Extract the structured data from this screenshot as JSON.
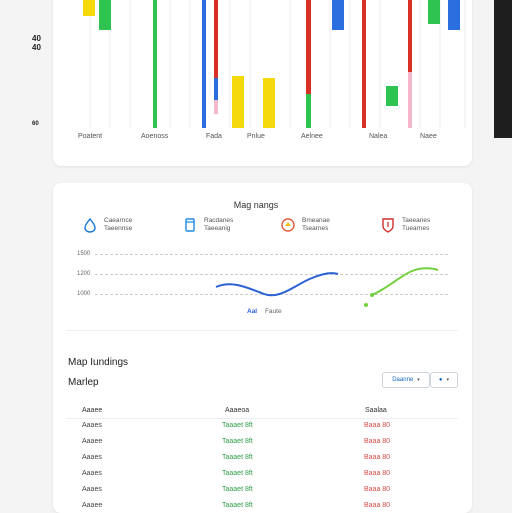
{
  "top_chart": {
    "side_labels": [
      "40",
      "40",
      "60"
    ],
    "x_labels": [
      "Poatent",
      "Aoenoss",
      "Fada",
      "Pnlue",
      "Aelnee",
      "Nalea",
      "Naee"
    ]
  },
  "performance": {
    "title": "Mag nangs",
    "stats": [
      {
        "icon": "drop-icon",
        "color": "#1976d2",
        "line1": "Caearnce",
        "line2": "Taeennse"
      },
      {
        "icon": "cup-icon",
        "color": "#1e88e5",
        "line1": "Racdanes",
        "line2": "Taeeanig"
      },
      {
        "icon": "warning-icon",
        "color": "#e55b3c",
        "line1": "Bmeanae",
        "line2": "Tsearnes"
      },
      {
        "icon": "shield-icon",
        "color": "#d32f2f",
        "line1": "Taeeanes",
        "line2": "Tuearnes"
      }
    ],
    "y_labels": [
      "1500",
      "1200",
      "1000"
    ],
    "legend": {
      "label1": "Aal",
      "label2": "Faute"
    },
    "colors": {
      "line_blue": "#2a62d3",
      "line_green": "#73d03f"
    }
  },
  "rankings": {
    "title": "Map Iundings",
    "subtitle": "Marlep",
    "dropdown_label": "Daanne",
    "dropdown2_label": "",
    "columns": [
      "Aaaee",
      "Aaaeoa",
      "Saalaa"
    ],
    "rows": [
      {
        "name": "Aaaes",
        "green": "Taaaet 8ft",
        "red": "Baaa 80"
      },
      {
        "name": "Aaaee",
        "green": "Taaaet 8ft",
        "red": "Baaa 80"
      },
      {
        "name": "Aaaes",
        "green": "Taaaet 8ft",
        "red": "Baaa 80"
      },
      {
        "name": "Aaaes",
        "green": "Taaaet 8ft",
        "red": "Baaa 80"
      },
      {
        "name": "Aaaes",
        "green": "Taaaet 8ft",
        "red": "Baaa 80"
      },
      {
        "name": "Aaaee",
        "green": "Taaaet 8ft",
        "red": "Baaa 80"
      }
    ]
  }
}
